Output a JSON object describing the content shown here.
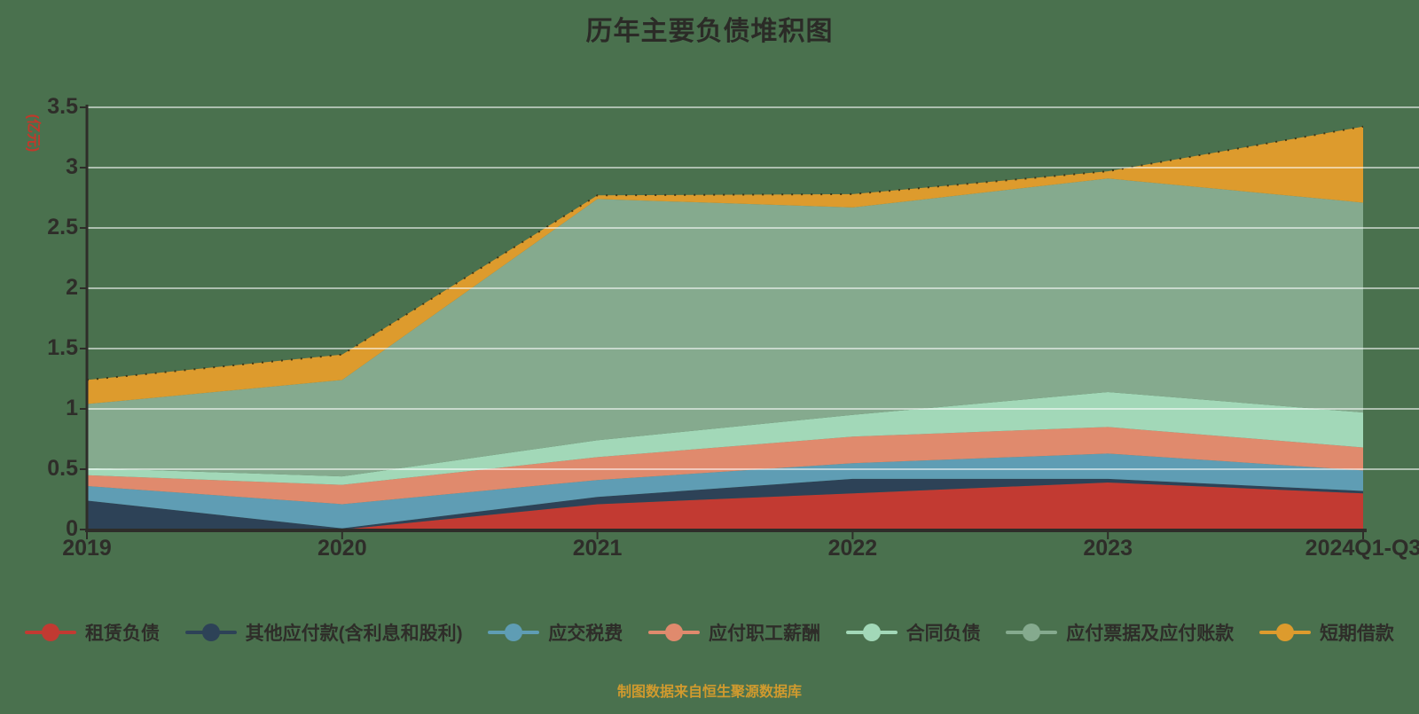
{
  "page": {
    "background_color": "#4a714e",
    "text_color": "#2e2d29"
  },
  "header": {
    "title": "历年主要负债堆积图"
  },
  "footer": {
    "source_note": "制图数据来自恒生聚源数据库",
    "color": "#d09a2e"
  },
  "chart_data": {
    "type": "area",
    "stacked": true,
    "title": "历年主要负债堆积图",
    "xlabel": "",
    "ylabel": "(亿元)",
    "ylabel_color": "#c0392b",
    "categories": [
      "2019",
      "2020",
      "2021",
      "2022",
      "2023",
      "2024Q1-Q3"
    ],
    "ylim": [
      0,
      3.5
    ],
    "ytick_labels": [
      "0",
      "0.5",
      "1",
      "1.5",
      "2",
      "2.5",
      "3",
      "3.5"
    ],
    "ytick_values": [
      0,
      0.5,
      1,
      1.5,
      2,
      2.5,
      3,
      3.5
    ],
    "grid": "horizontal-only",
    "gridline_color": "rgba(255,255,255,0.55)",
    "axis_color": "#2e2d29",
    "legend_position": "bottom",
    "top_edge_style": "dotted-dark-line",
    "series": [
      {
        "name": "租赁负债",
        "color": "#c23a32",
        "values": [
          0.0,
          0.0,
          0.21,
          0.3,
          0.39,
          0.3
        ]
      },
      {
        "name": "其他应付款(含利息和股利)",
        "color": "#2d4257",
        "values": [
          0.24,
          0.01,
          0.06,
          0.12,
          0.03,
          0.02
        ]
      },
      {
        "name": "应交税费",
        "color": "#5f9db4",
        "values": [
          0.12,
          0.2,
          0.14,
          0.13,
          0.21,
          0.17
        ]
      },
      {
        "name": "应付职工薪酬",
        "color": "#e08a6d",
        "values": [
          0.09,
          0.16,
          0.19,
          0.22,
          0.22,
          0.19
        ]
      },
      {
        "name": "合同负债",
        "color": "#a2d8b8",
        "values": [
          0.06,
          0.07,
          0.14,
          0.18,
          0.29,
          0.29
        ]
      },
      {
        "name": "应付票据及应付账款",
        "color": "#85aa8e",
        "values": [
          0.53,
          0.8,
          2.0,
          1.72,
          1.77,
          1.74
        ]
      },
      {
        "name": "短期借款",
        "color": "#dd9b2d",
        "values": [
          0.2,
          0.21,
          0.03,
          0.11,
          0.06,
          0.63
        ]
      }
    ],
    "stacked_totals": [
      1.24,
      1.45,
      2.77,
      2.78,
      2.97,
      3.34
    ]
  }
}
